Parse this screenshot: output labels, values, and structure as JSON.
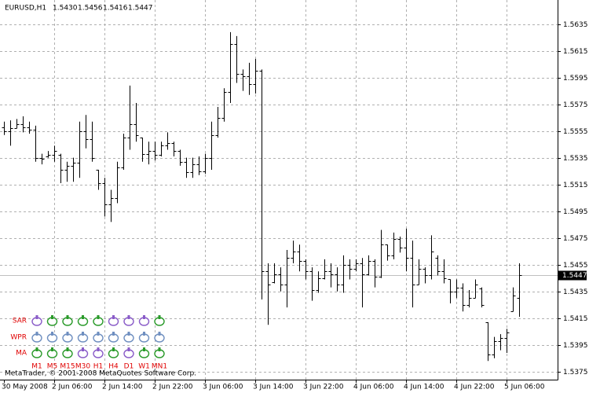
{
  "chart_data": {
    "type": "ohlc",
    "title": "EURUSD,H1",
    "last_labels": [
      "1.5430",
      "1.5456",
      "1.5416",
      "1.5447"
    ],
    "categories": [
      "30 May 2008",
      null,
      null,
      null,
      null,
      null,
      null,
      null,
      "2 Jun 06:00",
      null,
      null,
      null,
      null,
      null,
      null,
      null,
      "2 Jun 14:00",
      null,
      null,
      null,
      null,
      null,
      null,
      null,
      "2 Jun 22:00",
      null,
      null,
      null,
      null,
      null,
      null,
      null,
      "3 Jun 06:00",
      null,
      null,
      null,
      null,
      null,
      null,
      null,
      "3 Jun 14:00",
      null,
      null,
      null,
      null,
      null,
      null,
      null,
      "3 Jun 22:00",
      null,
      null,
      null,
      null,
      null,
      null,
      null,
      "4 Jun 06:00",
      null,
      null,
      null,
      null,
      null,
      null,
      null,
      "4 Jun 14:00",
      null,
      null,
      null,
      null,
      null,
      null,
      null,
      "4 Jun 22:00",
      null,
      null,
      null,
      null,
      null,
      null,
      null,
      "5 Jun 06:00",
      null,
      null
    ],
    "open": [
      1.5558,
      1.5555,
      1.5557,
      1.556,
      1.5558,
      1.5556,
      1.5535,
      1.5536,
      1.5537,
      1.5537,
      1.5526,
      1.5529,
      1.5531,
      1.5555,
      1.5549,
      1.5526,
      1.5516,
      1.55,
      1.5505,
      1.5528,
      1.555,
      1.556,
      1.555,
      1.5538,
      1.554,
      1.5537,
      1.5544,
      1.5546,
      1.554,
      1.5532,
      1.5524,
      1.553,
      1.5525,
      1.5535,
      1.5552,
      1.5565,
      1.5584,
      1.562,
      1.5598,
      1.5596,
      1.559,
      1.56,
      1.545,
      1.5442,
      1.5448,
      1.544,
      1.546,
      1.5465,
      1.5458,
      1.545,
      1.5436,
      1.5445,
      1.545,
      1.5448,
      1.544,
      1.5455,
      1.5452,
      1.5456,
      1.5448,
      1.5458,
      1.5446,
      1.547,
      1.5462,
      1.5474,
      1.5468,
      1.546,
      1.544,
      1.5452,
      1.5447,
      1.546,
      1.545,
      1.5444,
      1.5435,
      1.5438,
      1.5425,
      1.543,
      1.5437,
      1.5412,
      1.5388,
      1.5398,
      1.54,
      1.542,
      1.543
    ],
    "high": [
      1.5562,
      1.5563,
      1.5564,
      1.5566,
      1.5562,
      1.5559,
      1.5538,
      1.554,
      1.5544,
      1.5538,
      1.5532,
      1.5535,
      1.5562,
      1.5567,
      1.5562,
      1.5526,
      1.552,
      1.5511,
      1.5532,
      1.5553,
      1.5589,
      1.5576,
      1.555,
      1.5547,
      1.5547,
      1.5547,
      1.5554,
      1.5547,
      1.5541,
      1.5535,
      1.5535,
      1.5536,
      1.5538,
      1.5562,
      1.5573,
      1.5587,
      1.5629,
      1.5626,
      1.5601,
      1.5606,
      1.5609,
      1.5601,
      1.5456,
      1.5456,
      1.5453,
      1.5466,
      1.5473,
      1.547,
      1.5459,
      1.5453,
      1.545,
      1.5459,
      1.5456,
      1.5453,
      1.5462,
      1.5459,
      1.5459,
      1.546,
      1.5462,
      1.5459,
      1.5481,
      1.547,
      1.5479,
      1.5476,
      1.5482,
      1.5473,
      1.5459,
      1.5453,
      1.5477,
      1.5462,
      1.5459,
      1.5444,
      1.5444,
      1.5441,
      1.5436,
      1.5444,
      1.5438,
      1.5412,
      1.5401,
      1.5403,
      1.5407,
      1.5438,
      1.5456
    ],
    "low": [
      1.5552,
      1.5544,
      1.5557,
      1.5554,
      1.5553,
      1.5532,
      1.553,
      1.5535,
      1.5532,
      1.5516,
      1.5517,
      1.5517,
      1.552,
      1.5542,
      1.5532,
      1.5511,
      1.5491,
      1.5487,
      1.5501,
      1.5526,
      1.5541,
      1.5547,
      1.5532,
      1.553,
      1.5533,
      1.5536,
      1.5541,
      1.5536,
      1.5529,
      1.552,
      1.552,
      1.5522,
      1.5523,
      1.5526,
      1.555,
      1.5562,
      1.5576,
      1.5591,
      1.5585,
      1.5582,
      1.5583,
      1.5429,
      1.541,
      1.5441,
      1.5435,
      1.5423,
      1.5456,
      1.545,
      1.5444,
      1.5428,
      1.5434,
      1.5444,
      1.5438,
      1.5435,
      1.5434,
      1.5444,
      1.545,
      1.5423,
      1.5447,
      1.5438,
      1.5445,
      1.5458,
      1.5459,
      1.5464,
      1.545,
      1.5423,
      1.544,
      1.5441,
      1.5444,
      1.5447,
      1.5441,
      1.5426,
      1.543,
      1.542,
      1.5423,
      1.543,
      1.5423,
      1.5383,
      1.5385,
      1.5391,
      1.5389,
      1.542,
      1.5416
    ],
    "close": [
      1.5555,
      1.5557,
      1.556,
      1.5558,
      1.5556,
      1.5535,
      1.5534,
      1.5537,
      1.554,
      1.5526,
      1.5529,
      1.5531,
      1.5555,
      1.5549,
      1.5535,
      1.5516,
      1.55,
      1.5505,
      1.5528,
      1.555,
      1.556,
      1.5552,
      1.5538,
      1.554,
      1.5537,
      1.5544,
      1.5546,
      1.554,
      1.5532,
      1.5524,
      1.553,
      1.5525,
      1.5535,
      1.5552,
      1.5565,
      1.5584,
      1.562,
      1.5598,
      1.5596,
      1.559,
      1.56,
      1.545,
      1.544,
      1.5448,
      1.544,
      1.546,
      1.5465,
      1.5458,
      1.545,
      1.5436,
      1.5445,
      1.545,
      1.5448,
      1.544,
      1.5455,
      1.5452,
      1.5456,
      1.5448,
      1.5458,
      1.5446,
      1.547,
      1.5462,
      1.5474,
      1.5468,
      1.546,
      1.544,
      1.5452,
      1.5447,
      1.5465,
      1.545,
      1.5445,
      1.5435,
      1.5438,
      1.5425,
      1.543,
      1.544,
      1.5425,
      1.5388,
      1.5398,
      1.54,
      1.5404,
      1.5432,
      1.5447
    ],
    "color": "#000000",
    "ylim": [
      1.5369,
      1.5653
    ],
    "yticks": [
      1.5375,
      1.5395,
      1.5415,
      1.5435,
      1.5455,
      1.5475,
      1.5495,
      1.5515,
      1.5535,
      1.5555,
      1.5575,
      1.5595,
      1.5615,
      1.5635
    ],
    "grid": true
  },
  "indicators": {
    "rows": [
      "SAR",
      "WPR",
      "MA"
    ],
    "timeframes": [
      "M1",
      "M5",
      "M15",
      "M30",
      "H1",
      "H4",
      "D1",
      "W1",
      "MN1"
    ]
  },
  "footer": "MetaTrader, © 2001-2008 MetaQuotes Software Corp."
}
